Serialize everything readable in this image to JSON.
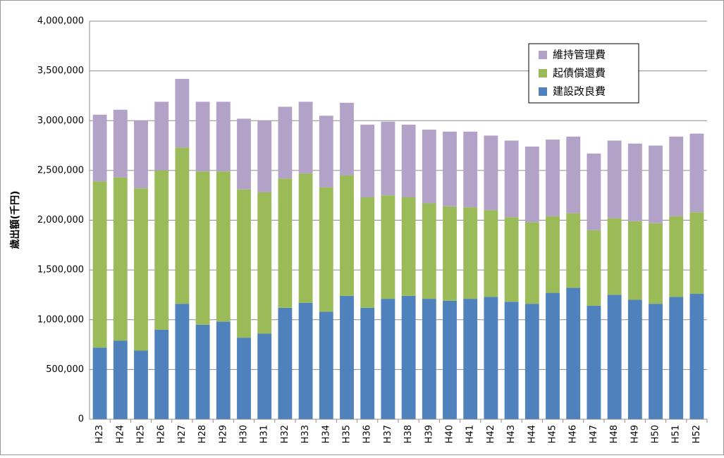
{
  "chart_data": {
    "type": "stacked-bar",
    "ylabel": "歳出額(千円)",
    "categories": [
      "H23",
      "H24",
      "H25",
      "H26",
      "H27",
      "H28",
      "H29",
      "H30",
      "H31",
      "H32",
      "H33",
      "H34",
      "H35",
      "H36",
      "H37",
      "H38",
      "H39",
      "H40",
      "H41",
      "H42",
      "H43",
      "H44",
      "H45",
      "H46",
      "H47",
      "H48",
      "H49",
      "H50",
      "H51",
      "H52"
    ],
    "series": [
      {
        "name": "建設改良費",
        "color": "#4f81bd",
        "values": [
          720000,
          790000,
          690000,
          900000,
          1160000,
          950000,
          980000,
          820000,
          860000,
          1120000,
          1170000,
          1080000,
          1240000,
          1120000,
          1210000,
          1240000,
          1210000,
          1190000,
          1210000,
          1230000,
          1180000,
          1160000,
          1270000,
          1320000,
          1140000,
          1250000,
          1200000,
          1160000,
          1230000,
          1260000
        ]
      },
      {
        "name": "起債償還費",
        "color": "#9bbb59",
        "values": [
          1670000,
          1640000,
          1630000,
          1600000,
          1570000,
          1540000,
          1510000,
          1490000,
          1420000,
          1300000,
          1300000,
          1250000,
          1210000,
          1110000,
          1040000,
          990000,
          960000,
          950000,
          920000,
          870000,
          850000,
          820000,
          770000,
          750000,
          760000,
          770000,
          790000,
          810000,
          810000,
          820000
        ]
      },
      {
        "name": "維持管理費",
        "color": "#b3a2c7",
        "values": [
          670000,
          680000,
          680000,
          690000,
          690000,
          700000,
          700000,
          710000,
          720000,
          720000,
          720000,
          720000,
          730000,
          730000,
          740000,
          730000,
          740000,
          750000,
          760000,
          750000,
          770000,
          760000,
          770000,
          770000,
          770000,
          780000,
          780000,
          780000,
          800000,
          790000
        ]
      }
    ],
    "ylim": [
      0,
      4000000
    ],
    "yticks": [
      0,
      {
        "value": 500000,
        "label": "500,000"
      },
      {
        "value": 1000000,
        "label": "1,000,000"
      },
      {
        "value": 1500000,
        "label": "1,500,000"
      },
      {
        "value": 2000000,
        "label": "2,000,000"
      },
      {
        "value": 2500000,
        "label": "2,500,000"
      },
      {
        "value": 3000000,
        "label": "3,000,000"
      },
      {
        "value": 3500000,
        "label": "3,500,000"
      },
      {
        "value": 4000000,
        "label": "4,000,000"
      }
    ],
    "grid": true,
    "legend": "upper-right"
  }
}
